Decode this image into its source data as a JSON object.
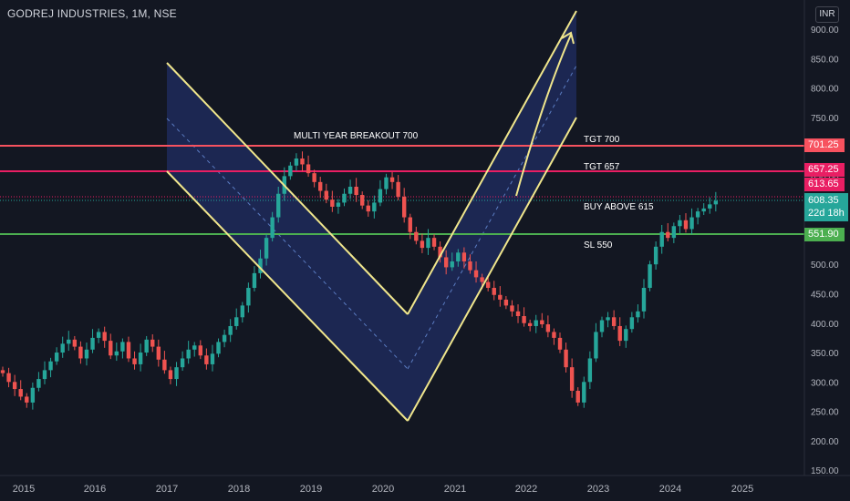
{
  "symbol": "GODREJ INDUSTRIES, 1M, NSE",
  "currency": "INR",
  "y_axis": {
    "ticks": [
      "900.00",
      "850.00",
      "800.00",
      "750.00",
      "700.00",
      "650.00",
      "600.00",
      "550.00",
      "500.00",
      "450.00",
      "400.00",
      "350.00",
      "300.00",
      "250.00",
      "200.00",
      "150.00"
    ],
    "values": [
      900,
      850,
      800,
      750,
      700,
      650,
      600,
      550,
      500,
      450,
      400,
      350,
      300,
      250,
      200,
      150
    ]
  },
  "x_axis": {
    "labels": [
      "2015",
      "2016",
      "2017",
      "2018",
      "2019",
      "2020",
      "2021",
      "2022",
      "2023",
      "2024",
      "2025"
    ]
  },
  "annotations": {
    "breakout": "MULTI YEAR BREAKOUT 700",
    "tgt700": "TGT 700",
    "tgt657": "TGT 657",
    "buy": "BUY ABOVE 615",
    "sl": "SL 550"
  },
  "price_tags": {
    "tgt700": "701.25",
    "tgt657": "657.25",
    "buy_level": "613.65",
    "last_price": "608.35",
    "countdown": "22d 18h",
    "sl": "551.90"
  },
  "colors": {
    "background": "#131722",
    "up": "#26a69a",
    "down": "#ef5350",
    "channel": "#f0e68c",
    "channel_fill": "#1e2a5a",
    "tgt700_line": "#f7525f",
    "tgt657_line": "#e91e63",
    "sl_line": "#4caf50"
  }
}
